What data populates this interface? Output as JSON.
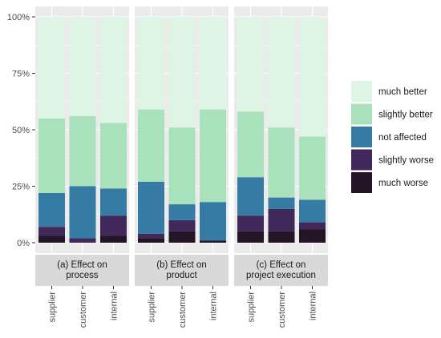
{
  "chart_data": {
    "type": "bar",
    "stacked": true,
    "title": "",
    "xlabel": "",
    "ylabel": "",
    "ylim": [
      0,
      1
    ],
    "y_ticks": [
      "0%",
      "25%",
      "50%",
      "75%",
      "100%"
    ],
    "categories": [
      "supplier",
      "customer",
      "internal"
    ],
    "legend_position": "right",
    "legend": [
      "much better",
      "slightly better",
      "not affected",
      "slightly worse",
      "much worse"
    ],
    "colors": {
      "much better": "#def5e5",
      "slightly better": "#a8e1bc",
      "not affected": "#357ba3",
      "slightly worse": "#40285a",
      "much worse": "#231526"
    },
    "panels": [
      {
        "label": [
          "(a) Effect on",
          "process"
        ],
        "stacks": {
          "supplier": {
            "much worse": 0.03,
            "slightly worse": 0.04,
            "not affected": 0.15,
            "slightly better": 0.33,
            "much better": 0.45
          },
          "customer": {
            "much worse": 0.0,
            "slightly worse": 0.02,
            "not affected": 0.23,
            "slightly better": 0.31,
            "much better": 0.44
          },
          "internal": {
            "much worse": 0.03,
            "slightly worse": 0.09,
            "not affected": 0.12,
            "slightly better": 0.29,
            "much better": 0.47
          }
        }
      },
      {
        "label": [
          "(b) Effect on",
          "product"
        ],
        "stacks": {
          "supplier": {
            "much worse": 0.02,
            "slightly worse": 0.02,
            "not affected": 0.23,
            "slightly better": 0.32,
            "much better": 0.41
          },
          "customer": {
            "much worse": 0.05,
            "slightly worse": 0.05,
            "not affected": 0.07,
            "slightly better": 0.34,
            "much better": 0.49
          },
          "internal": {
            "much worse": 0.01,
            "slightly worse": 0.0,
            "not affected": 0.17,
            "slightly better": 0.41,
            "much better": 0.41
          }
        }
      },
      {
        "label": [
          "(c) Effect on",
          "project execution"
        ],
        "stacks": {
          "supplier": {
            "much worse": 0.05,
            "slightly worse": 0.07,
            "not affected": 0.17,
            "slightly better": 0.29,
            "much better": 0.42
          },
          "customer": {
            "much worse": 0.05,
            "slightly worse": 0.1,
            "not affected": 0.05,
            "slightly better": 0.31,
            "much better": 0.49
          },
          "internal": {
            "much worse": 0.06,
            "slightly worse": 0.03,
            "not affected": 0.1,
            "slightly better": 0.28,
            "much better": 0.53
          }
        }
      }
    ]
  }
}
